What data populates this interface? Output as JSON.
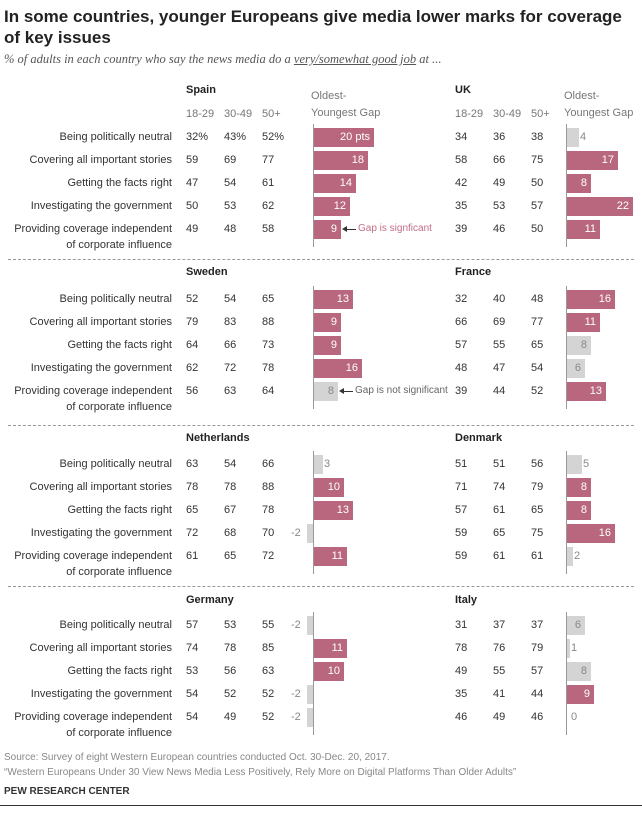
{
  "title": "In some countries, younger Europeans give media lower marks for coverage of key issues",
  "subtitle_pre": "% of adults in each country who say the news media do a ",
  "subtitle_em": "very/somewhat good job",
  "subtitle_post": " at ...",
  "colors": {
    "significant": "#b8677f",
    "not_significant": "#d4d4d4",
    "annotation_significant": "#c06f87",
    "annotation_not_significant": "#666666"
  },
  "chart_data": {
    "type": "table",
    "columns": [
      "18-29",
      "30-49",
      "50+"
    ],
    "gap_header_line1": "Oldest-",
    "gap_header_line2": "Youngest Gap",
    "rows": [
      "Being politically neutral",
      "Covering all important stories",
      "Getting the facts right",
      "Investigating the government",
      "Providing coverage independent|of corporate influence"
    ],
    "first_row_suffix": "%",
    "first_gap_suffix": " pts",
    "annotations": {
      "significant": "Gap is signficant",
      "not_significant": "Gap is not significant"
    },
    "panels": [
      {
        "country": "Spain",
        "values": [
          [
            32,
            43,
            52
          ],
          [
            59,
            69,
            77
          ],
          [
            47,
            54,
            61
          ],
          [
            50,
            53,
            62
          ],
          [
            49,
            48,
            58
          ]
        ],
        "gap": [
          20,
          18,
          14,
          12,
          9
        ],
        "significant": [
          true,
          true,
          true,
          true,
          true
        ]
      },
      {
        "country": "UK",
        "values": [
          [
            34,
            36,
            38
          ],
          [
            58,
            66,
            75
          ],
          [
            42,
            49,
            50
          ],
          [
            35,
            53,
            57
          ],
          [
            39,
            46,
            50
          ]
        ],
        "gap": [
          4,
          17,
          8,
          22,
          11
        ],
        "significant": [
          false,
          true,
          true,
          true,
          true
        ]
      },
      {
        "country": "Sweden",
        "values": [
          [
            52,
            54,
            65
          ],
          [
            79,
            83,
            88
          ],
          [
            64,
            66,
            73
          ],
          [
            62,
            72,
            78
          ],
          [
            56,
            63,
            64
          ]
        ],
        "gap": [
          13,
          9,
          9,
          16,
          8
        ],
        "significant": [
          true,
          true,
          true,
          true,
          false
        ]
      },
      {
        "country": "France",
        "values": [
          [
            32,
            40,
            48
          ],
          [
            66,
            69,
            77
          ],
          [
            57,
            55,
            65
          ],
          [
            48,
            47,
            54
          ],
          [
            39,
            44,
            52
          ]
        ],
        "gap": [
          16,
          11,
          8,
          6,
          13
        ],
        "significant": [
          true,
          true,
          false,
          false,
          true
        ]
      },
      {
        "country": "Netherlands",
        "values": [
          [
            63,
            54,
            66
          ],
          [
            78,
            78,
            88
          ],
          [
            65,
            67,
            78
          ],
          [
            72,
            68,
            70
          ],
          [
            61,
            65,
            72
          ]
        ],
        "gap": [
          3,
          10,
          13,
          -2,
          11
        ],
        "significant": [
          false,
          true,
          true,
          false,
          true
        ]
      },
      {
        "country": "Denmark",
        "values": [
          [
            51,
            51,
            56
          ],
          [
            71,
            74,
            79
          ],
          [
            57,
            61,
            65
          ],
          [
            59,
            65,
            75
          ],
          [
            59,
            61,
            61
          ]
        ],
        "gap": [
          5,
          8,
          8,
          16,
          2
        ],
        "significant": [
          false,
          true,
          true,
          true,
          false
        ]
      },
      {
        "country": "Germany",
        "values": [
          [
            57,
            53,
            55
          ],
          [
            74,
            78,
            85
          ],
          [
            53,
            56,
            63
          ],
          [
            54,
            52,
            52
          ],
          [
            54,
            49,
            52
          ]
        ],
        "gap": [
          -2,
          11,
          10,
          -2,
          -2
        ],
        "significant": [
          false,
          true,
          true,
          false,
          false
        ]
      },
      {
        "country": "Italy",
        "values": [
          [
            31,
            37,
            37
          ],
          [
            78,
            76,
            79
          ],
          [
            49,
            55,
            57
          ],
          [
            35,
            41,
            44
          ],
          [
            46,
            49,
            46
          ]
        ],
        "gap": [
          6,
          1,
          8,
          9,
          0
        ],
        "significant": [
          false,
          false,
          false,
          true,
          false
        ]
      }
    ]
  },
  "footer": {
    "source": "Source: Survey of eight Western European countries conducted Oct. 30-Dec. 20, 2017.",
    "report": "“Western Europeans Under 30 View News Media Less Positively, Rely More on Digital Platforms Than Older Adults”",
    "org": "PEW RESEARCH CENTER"
  }
}
